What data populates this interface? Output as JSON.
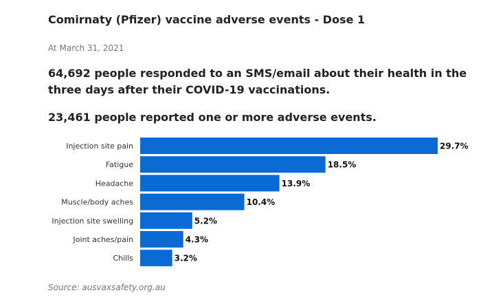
{
  "header": {
    "title": "Comirnaty (Pfizer) vaccine adverse events - Dose 1",
    "date": "At March 31, 2021",
    "headline_1": "64,692 people responded to an SMS/email about their health in the three days after their COVID-19 vaccinations.",
    "headline_2": "23,461 people reported one or more adverse events."
  },
  "footer": {
    "source": "Source: ausvaxsafety.org.au"
  },
  "colors": {
    "bar": "#0b6bd4"
  },
  "chart_data": {
    "type": "bar",
    "orientation": "horizontal",
    "categories": [
      "Injection site pain",
      "Fatigue",
      "Headache",
      "Muscle/body aches",
      "Injection site swelling",
      "Joint aches/pain",
      "Chills"
    ],
    "values": [
      29.7,
      18.5,
      13.9,
      10.4,
      5.2,
      4.3,
      3.2
    ],
    "value_labels": [
      "29.7%",
      "18.5%",
      "13.9%",
      "10.4%",
      "5.2%",
      "4.3%",
      "3.2%"
    ],
    "unit": "%",
    "xlim": [
      0,
      29.7
    ],
    "grid": false,
    "legend": "none"
  }
}
